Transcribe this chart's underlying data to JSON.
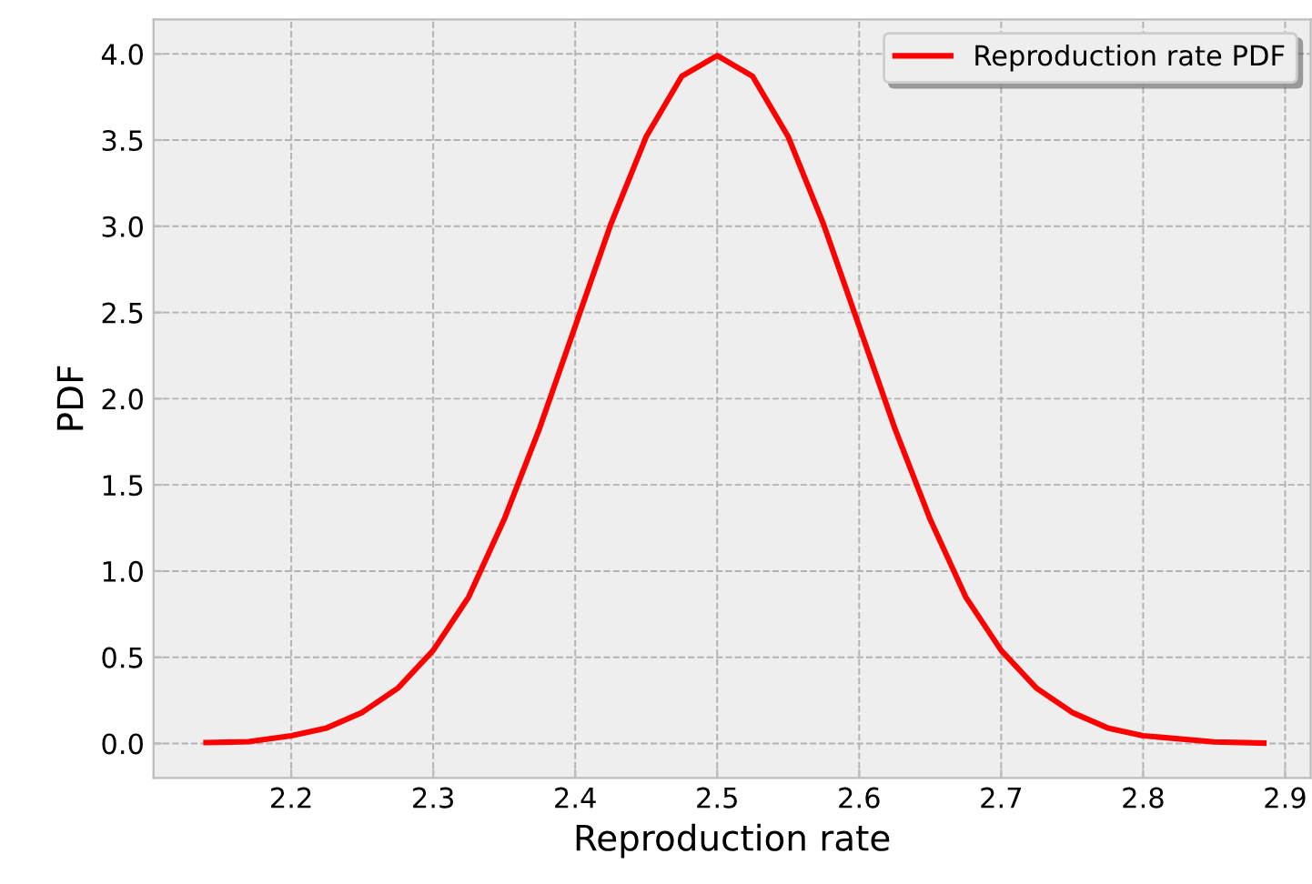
{
  "chart_data": {
    "type": "line",
    "xlabel": "Reproduction rate",
    "ylabel": "PDF",
    "series": [
      {
        "name": "Reproduction rate PDF",
        "color": "#ff0000",
        "x": [
          2.14,
          2.17,
          2.2,
          2.225,
          2.25,
          2.275,
          2.3,
          2.325,
          2.35,
          2.375,
          2.4,
          2.425,
          2.45,
          2.475,
          2.5,
          2.525,
          2.55,
          2.575,
          2.6,
          2.625,
          2.65,
          2.675,
          2.7,
          2.725,
          2.75,
          2.775,
          2.8,
          2.85,
          2.885
        ],
        "values": [
          0.005,
          0.01,
          0.045,
          0.09,
          0.18,
          0.32,
          0.54,
          0.85,
          1.3,
          1.83,
          2.42,
          3.01,
          3.52,
          3.87,
          3.99,
          3.87,
          3.52,
          3.01,
          2.42,
          1.83,
          1.3,
          0.85,
          0.54,
          0.32,
          0.18,
          0.09,
          0.045,
          0.009,
          0.002
        ]
      }
    ],
    "xlim": [
      2.103,
      2.918
    ],
    "ylim": [
      -0.2,
      4.2
    ],
    "xticks": [
      2.2,
      2.3,
      2.4,
      2.5,
      2.6,
      2.7,
      2.8,
      2.9
    ],
    "yticks": [
      {
        "value": 0,
        "label": "0.0"
      },
      {
        "value": 0.5,
        "label": "0.5"
      },
      {
        "value": 1,
        "label": "1.0"
      },
      {
        "value": 1.5,
        "label": "1.5"
      },
      {
        "value": 2,
        "label": "2.0"
      },
      {
        "value": 2.5,
        "label": "2.5"
      },
      {
        "value": 3,
        "label": "3.0"
      },
      {
        "value": 3.5,
        "label": "3.5"
      },
      {
        "value": 4,
        "label": "4.0"
      }
    ],
    "grid": true,
    "legend": "top right",
    "line_style": "solid",
    "marker": "none"
  }
}
